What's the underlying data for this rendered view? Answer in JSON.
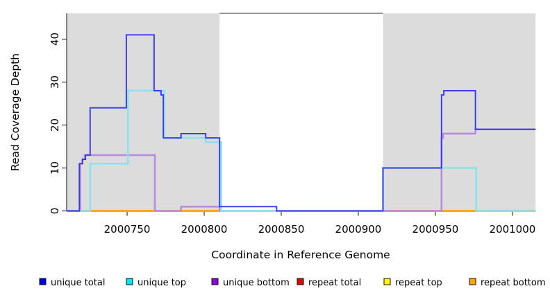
{
  "chart_data": {
    "type": "step-line",
    "title": "",
    "xlabel": "Coordinate in Reference Genome",
    "ylabel": "Read Coverage Depth",
    "x_ticks": [
      2000750,
      2000800,
      2000850,
      2000900,
      2000950,
      2001000
    ],
    "y_ticks": [
      0,
      10,
      20,
      30,
      40
    ],
    "xlim": [
      2000711,
      2001015
    ],
    "ylim": [
      0,
      46
    ],
    "grid": "off",
    "background_shading": {
      "color": "#dcdcdc",
      "note": "shaded repeat regions of reference genome",
      "regions": [
        [
          2000711,
          2000810
        ],
        [
          2000916,
          2001015
        ]
      ]
    },
    "series": [
      {
        "name": "repeat-total",
        "label": "repeat total",
        "line_color": "#dd3344",
        "legend_color": "#e60000",
        "line_width": 2.6,
        "parts": [
          {
            "points": [
              [
                2000711,
                0
              ]
            ],
            "end": 2000810
          },
          {
            "points": [
              [
                2000916,
                0
              ]
            ],
            "end": 2001015
          }
        ]
      },
      {
        "name": "repeat-top",
        "label": "repeat top",
        "line_color": "#f0e24a",
        "legend_color": "#ffff00",
        "line_width": 2.6,
        "parts": [
          {
            "points": [
              [
                2000711,
                0
              ]
            ],
            "end": 2000810
          },
          {
            "points": [
              [
                2000916,
                0
              ]
            ],
            "end": 2001015
          }
        ]
      },
      {
        "name": "repeat-bottom",
        "label": "repeat bottom",
        "line_color": "#ffa513",
        "legend_color": "#ffa500",
        "line_width": 2.6,
        "parts": [
          {
            "points": [
              [
                2000711,
                0
              ]
            ],
            "end": 2000810
          },
          {
            "points": [
              [
                2000916,
                0
              ]
            ],
            "end": 2001015
          }
        ]
      },
      {
        "name": "unique-bottom",
        "label": "unique bottom",
        "line_color": "#b78cdc",
        "legend_color": "#9400d3",
        "line_width": 2.6,
        "parts": [
          {
            "points": [
              [
                2000711,
                0
              ],
              [
                2000719.5,
                11
              ],
              [
                2000721,
                12
              ],
              [
                2000722.5,
                13
              ],
              [
                2000768,
                0
              ],
              [
                2000785,
                1
              ],
              [
                2000810,
                0
              ],
              [
                2000954,
                17
              ],
              [
                2000955,
                18
              ],
              [
                2000976,
                19
              ]
            ],
            "end": 2001015
          }
        ]
      },
      {
        "name": "unique-top",
        "label": "unique top",
        "line_color": "#8ce1ec",
        "legend_color": "#00e5ee",
        "line_width": 2.6,
        "parts": [
          {
            "points": [
              [
                2000711,
                0
              ],
              [
                2000726,
                11
              ],
              [
                2000750.5,
                28
              ],
              [
                2000774,
                17
              ],
              [
                2000801,
                16
              ],
              [
                2000811,
                0
              ],
              [
                2000916,
                10
              ],
              [
                2000976.5,
                0
              ]
            ],
            "end": 2001015
          }
        ]
      },
      {
        "name": "unique-total",
        "label": "unique total",
        "line_color": "#3538ef",
        "legend_color": "#0000e0",
        "line_width": 1.9,
        "parts": [
          {
            "points": [
              [
                2000711,
                0
              ],
              [
                2000719,
                11
              ],
              [
                2000721,
                12
              ],
              [
                2000723,
                13
              ],
              [
                2000726,
                24
              ],
              [
                2000749.5,
                41
              ],
              [
                2000767.5,
                28
              ],
              [
                2000772,
                27
              ],
              [
                2000773.5,
                17
              ],
              [
                2000785,
                18
              ],
              [
                2000801,
                17
              ],
              [
                2000810,
                1
              ],
              [
                2000847,
                0
              ],
              [
                2000916,
                10
              ],
              [
                2000954,
                27
              ],
              [
                2000955.5,
                28
              ],
              [
                2000976,
                19
              ]
            ],
            "end": 2001015
          }
        ]
      }
    ],
    "legend": {
      "position": "bottom",
      "items": [
        {
          "label": "unique total",
          "color": "#0000e0"
        },
        {
          "label": "unique top",
          "color": "#00e5ee"
        },
        {
          "label": "unique bottom",
          "color": "#9400d3"
        },
        {
          "label": "repeat total",
          "color": "#e60000"
        },
        {
          "label": "repeat top",
          "color": "#ffff00"
        },
        {
          "label": "repeat bottom",
          "color": "#ffa500"
        }
      ]
    }
  }
}
